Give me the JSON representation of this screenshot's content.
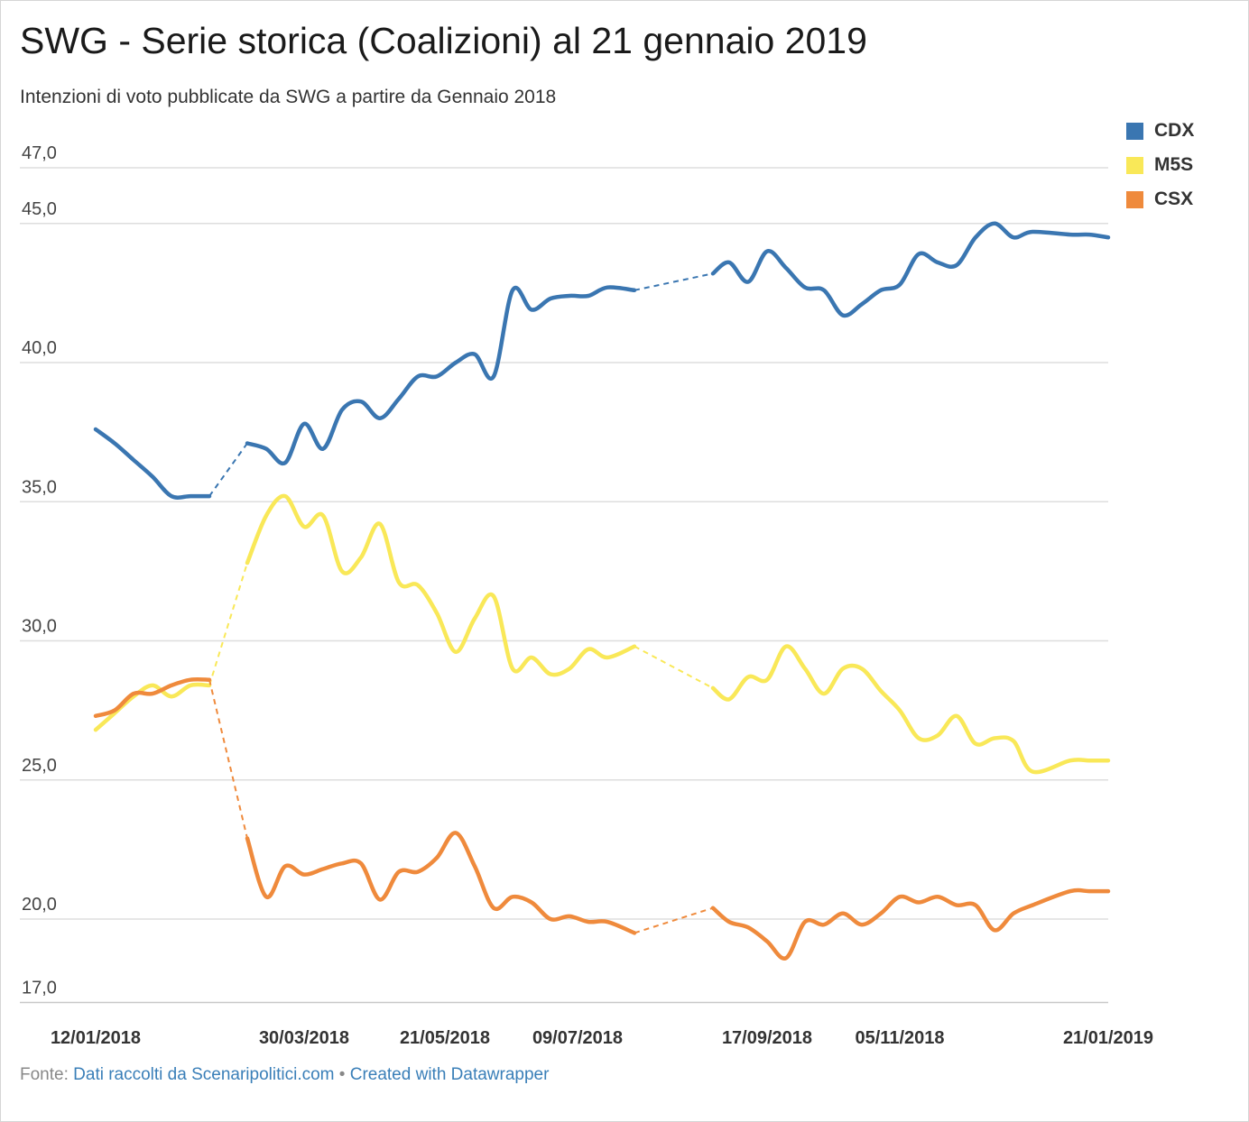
{
  "header": {
    "title": "SWG - Serie storica (Coalizioni) al 21 gennaio 2019",
    "subtitle": "Intenzioni di voto pubblicate da SWG a partire da Gennaio 2018"
  },
  "footer": {
    "source_label": "Fonte:",
    "source_link": "Dati raccolti da Scenaripolitici.com",
    "separator": "•",
    "credit_link": "Created with Datawrapper"
  },
  "chart_data": {
    "type": "line",
    "title": "SWG - Serie storica (Coalizioni) al 21 gennaio 2019",
    "subtitle": "Intenzioni di voto pubblicate da SWG a partire da Gennaio 2018",
    "xlabel": "",
    "ylabel": "",
    "ylim": [
      17,
      47
    ],
    "y_ticks": [
      17,
      20,
      25,
      30,
      35,
      40,
      45,
      47
    ],
    "y_tick_labels": [
      "17,0",
      "20,0",
      "25,0",
      "30,0",
      "35,0",
      "40,0",
      "45,0",
      "47,0"
    ],
    "x_range": [
      "2018-01-12",
      "2019-01-21"
    ],
    "x_ticks": [
      "2018-01-12",
      "2018-03-30",
      "2018-05-21",
      "2018-07-09",
      "2018-09-17",
      "2018-11-05",
      "2019-01-21"
    ],
    "x_tick_labels": [
      "12/01/2018",
      "30/03/2018",
      "21/05/2018",
      "09/07/2018",
      "17/09/2018",
      "05/11/2018",
      "21/01/2019"
    ],
    "grid": true,
    "legend": "top-right",
    "gaps": [
      [
        "2018-02-23",
        "2018-03-09"
      ],
      [
        "2018-07-30",
        "2018-08-28"
      ]
    ],
    "x": [
      "2018-01-12",
      "2018-01-19",
      "2018-01-26",
      "2018-02-02",
      "2018-02-09",
      "2018-02-16",
      "2018-02-23",
      "2018-03-09",
      "2018-03-16",
      "2018-03-23",
      "2018-03-30",
      "2018-04-06",
      "2018-04-13",
      "2018-04-20",
      "2018-04-27",
      "2018-05-04",
      "2018-05-11",
      "2018-05-18",
      "2018-05-25",
      "2018-06-01",
      "2018-06-08",
      "2018-06-15",
      "2018-06-22",
      "2018-06-29",
      "2018-07-06",
      "2018-07-13",
      "2018-07-20",
      "2018-07-30",
      "2018-08-28",
      "2018-09-03",
      "2018-09-10",
      "2018-09-17",
      "2018-09-24",
      "2018-10-01",
      "2018-10-08",
      "2018-10-15",
      "2018-10-22",
      "2018-10-29",
      "2018-11-05",
      "2018-11-12",
      "2018-11-19",
      "2018-11-26",
      "2018-12-03",
      "2018-12-10",
      "2018-12-17",
      "2018-12-24",
      "2019-01-07",
      "2019-01-14",
      "2019-01-21"
    ],
    "series": [
      {
        "name": "CDX",
        "color": "#3a76b1",
        "values": [
          37.6,
          37.1,
          36.5,
          35.9,
          35.2,
          35.2,
          35.2,
          37.1,
          36.9,
          36.4,
          37.8,
          36.9,
          38.3,
          38.6,
          38.0,
          38.7,
          39.5,
          39.5,
          40.0,
          40.3,
          39.5,
          42.6,
          41.9,
          42.3,
          42.4,
          42.4,
          42.7,
          42.6,
          43.2,
          43.6,
          42.9,
          44.0,
          43.4,
          42.7,
          42.6,
          41.7,
          42.1,
          42.6,
          42.8,
          43.9,
          43.6,
          43.5,
          44.5,
          45.0,
          44.5,
          44.7,
          44.6,
          44.6,
          44.5
        ]
      },
      {
        "name": "M5S",
        "color": "#f9e858",
        "values": [
          26.8,
          27.4,
          28.0,
          28.4,
          28.0,
          28.4,
          28.4,
          32.8,
          34.5,
          35.2,
          34.1,
          34.5,
          32.5,
          33.0,
          34.2,
          32.1,
          32.0,
          31.0,
          29.6,
          30.8,
          31.6,
          29.0,
          29.4,
          28.8,
          29.0,
          29.7,
          29.4,
          29.8,
          28.3,
          27.9,
          28.7,
          28.6,
          29.8,
          29.0,
          28.1,
          29.0,
          29.0,
          28.2,
          27.5,
          26.5,
          26.6,
          27.3,
          26.3,
          26.5,
          26.4,
          25.3,
          25.7,
          25.7,
          25.7
        ]
      },
      {
        "name": "CSX",
        "color": "#ef8a3c",
        "values": [
          27.3,
          27.5,
          28.1,
          28.1,
          28.4,
          28.6,
          28.6,
          22.9,
          20.8,
          21.9,
          21.6,
          21.8,
          22.0,
          22.0,
          20.7,
          21.7,
          21.7,
          22.2,
          23.1,
          21.9,
          20.4,
          20.8,
          20.6,
          20.0,
          20.1,
          19.9,
          19.9,
          19.5,
          20.4,
          19.9,
          19.7,
          19.2,
          18.6,
          19.9,
          19.8,
          20.2,
          19.8,
          20.2,
          20.8,
          20.6,
          20.8,
          20.5,
          20.5,
          19.6,
          20.2,
          20.5,
          21.0,
          21.0,
          21.0
        ]
      }
    ]
  }
}
